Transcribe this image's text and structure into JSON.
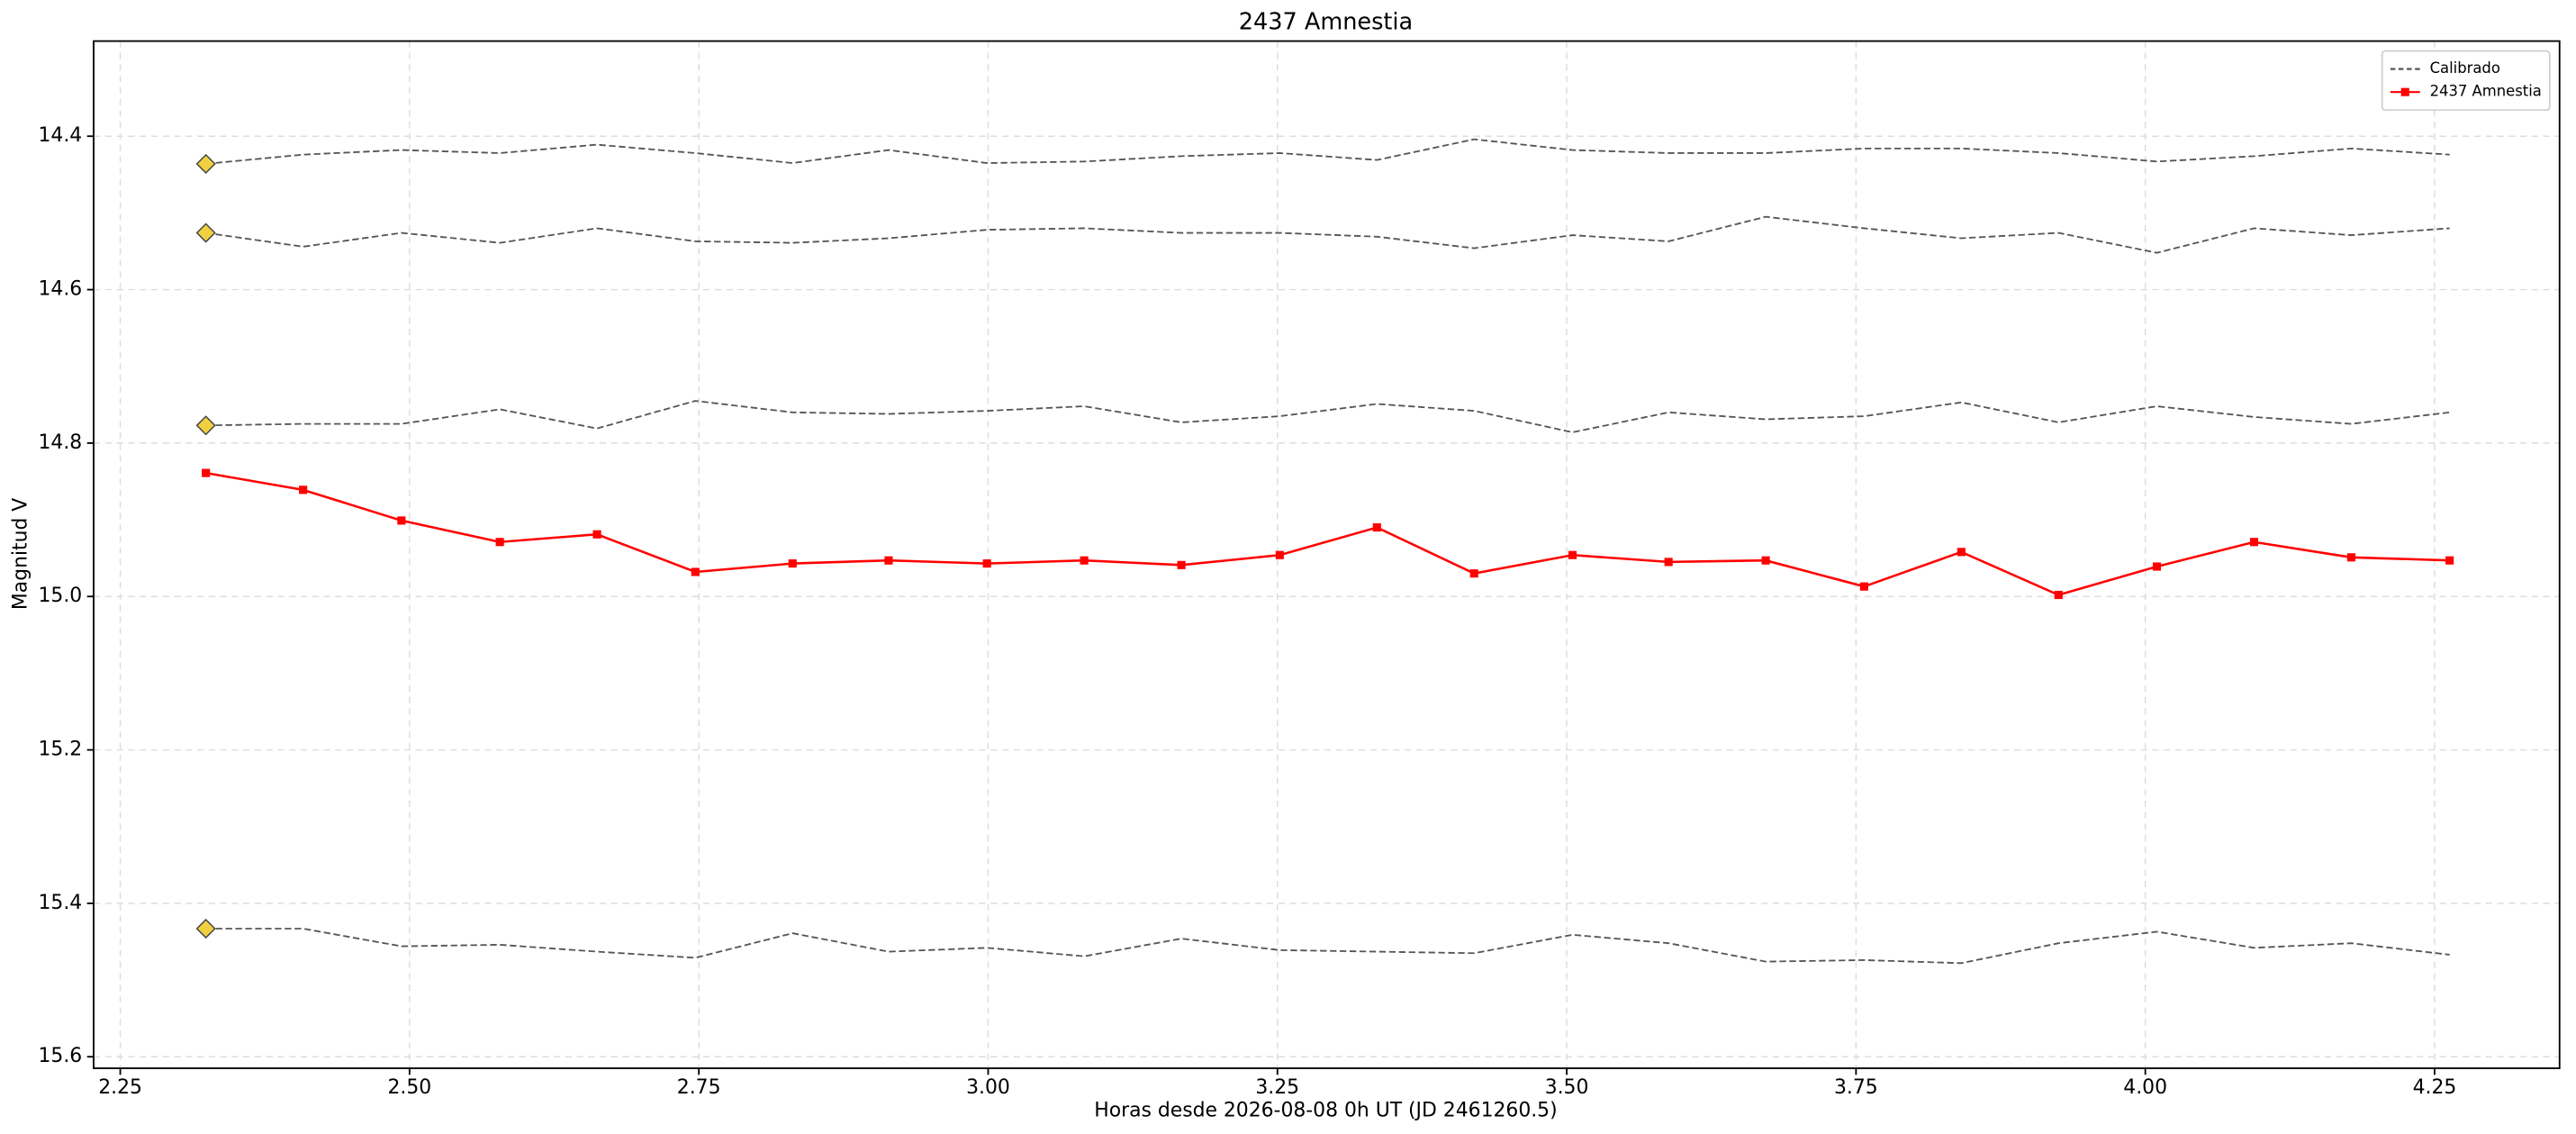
{
  "chart_data": {
    "type": "line",
    "title": "2437 Amnestia",
    "x_label": "Horas desde 2026-08-08 0h UT (JD 2461260.5)",
    "y_label": "Magnitud V",
    "x": [
      2.324,
      2.408,
      2.493,
      2.578,
      2.662,
      2.747,
      2.831,
      2.914,
      2.999,
      3.083,
      3.167,
      3.252,
      3.336,
      3.42,
      3.505,
      3.588,
      3.672,
      3.757,
      3.841,
      3.925,
      4.01,
      4.094,
      4.178,
      4.263
    ],
    "series": [
      {
        "name": "Calibrado",
        "color": "#555555",
        "style": "dashed",
        "first_marker_color": "#f0d040",
        "values": [
          14.436,
          14.424,
          14.418,
          14.422,
          14.411,
          14.422,
          14.435,
          14.418,
          14.435,
          14.433,
          14.426,
          14.422,
          14.431,
          14.404,
          14.418,
          14.422,
          14.422,
          14.416,
          14.416,
          14.422,
          14.433,
          14.426,
          14.416,
          14.424
        ]
      },
      {
        "name": "Calibrado",
        "color": "#555555",
        "style": "dashed",
        "first_marker_color": "#f0d040",
        "values": [
          14.526,
          14.544,
          14.526,
          14.539,
          14.52,
          14.537,
          14.539,
          14.533,
          14.522,
          14.52,
          14.526,
          14.526,
          14.531,
          14.546,
          14.529,
          14.537,
          14.505,
          14.52,
          14.533,
          14.526,
          14.552,
          14.52,
          14.529,
          14.52
        ]
      },
      {
        "name": "Calibrado",
        "color": "#555555",
        "style": "dashed",
        "first_marker_color": "#f0d040",
        "values": [
          14.777,
          14.775,
          14.775,
          14.756,
          14.781,
          14.745,
          14.76,
          14.762,
          14.758,
          14.752,
          14.773,
          14.765,
          14.749,
          14.758,
          14.786,
          14.76,
          14.769,
          14.765,
          14.747,
          14.773,
          14.752,
          14.766,
          14.775,
          14.76
        ]
      },
      {
        "name": "Calibrado",
        "color": "#555555",
        "style": "dashed",
        "first_marker_color": "#f0d040",
        "values": [
          15.433,
          15.433,
          15.456,
          15.454,
          15.463,
          15.471,
          15.439,
          15.463,
          15.458,
          15.469,
          15.446,
          15.461,
          15.463,
          15.465,
          15.441,
          15.452,
          15.476,
          15.474,
          15.478,
          15.452,
          15.437,
          15.458,
          15.452,
          15.467
        ]
      },
      {
        "name": "2437 Amnestia",
        "color": "#ff0000",
        "style": "solid",
        "marker": "square",
        "values": [
          14.839,
          14.861,
          14.901,
          14.929,
          14.919,
          14.968,
          14.957,
          14.953,
          14.957,
          14.953,
          14.959,
          14.946,
          14.91,
          14.97,
          14.946,
          14.955,
          14.953,
          14.987,
          14.942,
          14.998,
          14.961,
          14.929,
          14.949,
          14.953
        ],
        "errors": [
          0.005,
          0.005,
          0.005,
          0.005,
          0.005,
          0.005,
          0.005,
          0.005,
          0.005,
          0.005,
          0.005,
          0.005,
          0.005,
          0.005,
          0.005,
          0.005,
          0.005,
          0.005,
          0.005,
          0.005,
          0.005,
          0.005,
          0.005,
          0.005
        ]
      }
    ],
    "xlim": [
      2.227,
      4.358
    ],
    "ylim": [
      14.276,
      15.615
    ],
    "y_inverted": true,
    "xticks": [
      2.25,
      {
        "value": 2.5,
        "label": "2.50"
      },
      2.75,
      {
        "value": 3,
        "label": "3.00"
      },
      3.25,
      {
        "value": 3.5,
        "label": "3.50"
      },
      3.75,
      {
        "value": 4,
        "label": "4.00"
      },
      4.25
    ],
    "yticks": [
      14.4,
      14.6,
      14.8,
      {
        "value": 15,
        "label": "15.0"
      },
      15.2,
      15.4,
      15.6
    ],
    "grid": true,
    "legend": "upper right"
  }
}
